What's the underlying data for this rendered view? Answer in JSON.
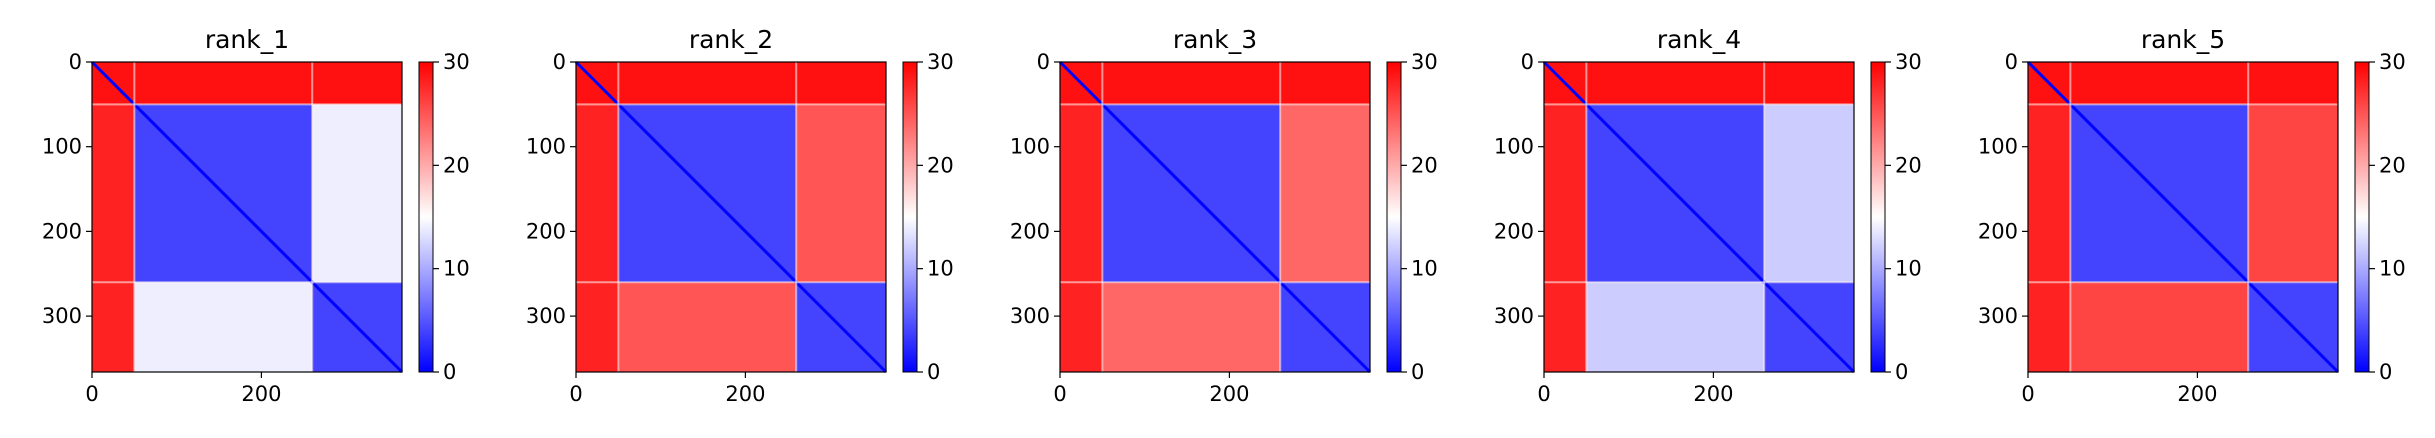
{
  "chart_data": [
    {
      "type": "heatmap",
      "title": "rank_1",
      "xlim": [
        0,
        366
      ],
      "ylim": [
        366,
        0
      ],
      "xticks": [
        0,
        200
      ],
      "yticks": [
        0,
        100,
        200,
        300
      ],
      "colorbar": {
        "min": 0,
        "max": 30,
        "ticks": [
          0,
          10,
          20,
          30
        ],
        "colormap": "bwr"
      },
      "domain_boundaries": [
        50,
        260
      ],
      "blocks": [
        {
          "rows": [
            0,
            50
          ],
          "cols": [
            0,
            366
          ],
          "value": 29
        },
        {
          "rows": [
            50,
            260
          ],
          "cols": [
            50,
            260
          ],
          "value": 4
        },
        {
          "rows": [
            50,
            260
          ],
          "cols": [
            260,
            366
          ],
          "value": 14
        },
        {
          "rows": [
            260,
            366
          ],
          "cols": [
            50,
            260
          ],
          "value": 14
        },
        {
          "rows": [
            260,
            366
          ],
          "cols": [
            260,
            366
          ],
          "value": 4
        },
        {
          "rows": [
            50,
            366
          ],
          "cols": [
            0,
            50
          ],
          "value": 28
        }
      ]
    },
    {
      "type": "heatmap",
      "title": "rank_2",
      "xlim": [
        0,
        366
      ],
      "ylim": [
        366,
        0
      ],
      "xticks": [
        0,
        200
      ],
      "yticks": [
        0,
        100,
        200,
        300
      ],
      "colorbar": {
        "min": 0,
        "max": 30,
        "ticks": [
          0,
          10,
          20,
          30
        ],
        "colormap": "bwr"
      },
      "domain_boundaries": [
        50,
        260
      ],
      "blocks": [
        {
          "rows": [
            0,
            50
          ],
          "cols": [
            0,
            366
          ],
          "value": 29
        },
        {
          "rows": [
            50,
            260
          ],
          "cols": [
            50,
            260
          ],
          "value": 4
        },
        {
          "rows": [
            50,
            260
          ],
          "cols": [
            260,
            366
          ],
          "value": 25
        },
        {
          "rows": [
            260,
            366
          ],
          "cols": [
            50,
            260
          ],
          "value": 25
        },
        {
          "rows": [
            260,
            366
          ],
          "cols": [
            260,
            366
          ],
          "value": 4
        },
        {
          "rows": [
            50,
            366
          ],
          "cols": [
            0,
            50
          ],
          "value": 28
        }
      ]
    },
    {
      "type": "heatmap",
      "title": "rank_3",
      "xlim": [
        0,
        366
      ],
      "ylim": [
        366,
        0
      ],
      "xticks": [
        0,
        200
      ],
      "yticks": [
        0,
        100,
        200,
        300
      ],
      "colorbar": {
        "min": 0,
        "max": 30,
        "ticks": [
          0,
          10,
          20,
          30
        ],
        "colormap": "bwr"
      },
      "domain_boundaries": [
        50,
        260
      ],
      "blocks": [
        {
          "rows": [
            0,
            50
          ],
          "cols": [
            0,
            366
          ],
          "value": 29
        },
        {
          "rows": [
            50,
            260
          ],
          "cols": [
            50,
            260
          ],
          "value": 4
        },
        {
          "rows": [
            50,
            260
          ],
          "cols": [
            260,
            366
          ],
          "value": 24
        },
        {
          "rows": [
            260,
            366
          ],
          "cols": [
            50,
            260
          ],
          "value": 24
        },
        {
          "rows": [
            260,
            366
          ],
          "cols": [
            260,
            366
          ],
          "value": 4
        },
        {
          "rows": [
            50,
            366
          ],
          "cols": [
            0,
            50
          ],
          "value": 28
        }
      ]
    },
    {
      "type": "heatmap",
      "title": "rank_4",
      "xlim": [
        0,
        366
      ],
      "ylim": [
        366,
        0
      ],
      "xticks": [
        0,
        200
      ],
      "yticks": [
        0,
        100,
        200,
        300
      ],
      "colorbar": {
        "min": 0,
        "max": 30,
        "ticks": [
          0,
          10,
          20,
          30
        ],
        "colormap": "bwr"
      },
      "domain_boundaries": [
        50,
        260
      ],
      "blocks": [
        {
          "rows": [
            0,
            50
          ],
          "cols": [
            0,
            366
          ],
          "value": 29
        },
        {
          "rows": [
            50,
            260
          ],
          "cols": [
            50,
            260
          ],
          "value": 4
        },
        {
          "rows": [
            50,
            260
          ],
          "cols": [
            260,
            366
          ],
          "value": 12
        },
        {
          "rows": [
            260,
            366
          ],
          "cols": [
            50,
            260
          ],
          "value": 12
        },
        {
          "rows": [
            260,
            366
          ],
          "cols": [
            260,
            366
          ],
          "value": 4
        },
        {
          "rows": [
            50,
            366
          ],
          "cols": [
            0,
            50
          ],
          "value": 28
        }
      ]
    },
    {
      "type": "heatmap",
      "title": "rank_5",
      "xlim": [
        0,
        366
      ],
      "ylim": [
        366,
        0
      ],
      "xticks": [
        0,
        200
      ],
      "yticks": [
        0,
        100,
        200,
        300
      ],
      "colorbar": {
        "min": 0,
        "max": 30,
        "ticks": [
          0,
          10,
          20,
          30
        ],
        "colormap": "bwr"
      },
      "domain_boundaries": [
        50,
        260
      ],
      "blocks": [
        {
          "rows": [
            0,
            50
          ],
          "cols": [
            0,
            366
          ],
          "value": 29
        },
        {
          "rows": [
            50,
            260
          ],
          "cols": [
            50,
            260
          ],
          "value": 4
        },
        {
          "rows": [
            50,
            260
          ],
          "cols": [
            260,
            366
          ],
          "value": 26
        },
        {
          "rows": [
            260,
            366
          ],
          "cols": [
            50,
            260
          ],
          "value": 26
        },
        {
          "rows": [
            260,
            366
          ],
          "cols": [
            260,
            366
          ],
          "value": 4
        },
        {
          "rows": [
            50,
            366
          ],
          "cols": [
            0,
            50
          ],
          "value": 28
        }
      ]
    }
  ]
}
